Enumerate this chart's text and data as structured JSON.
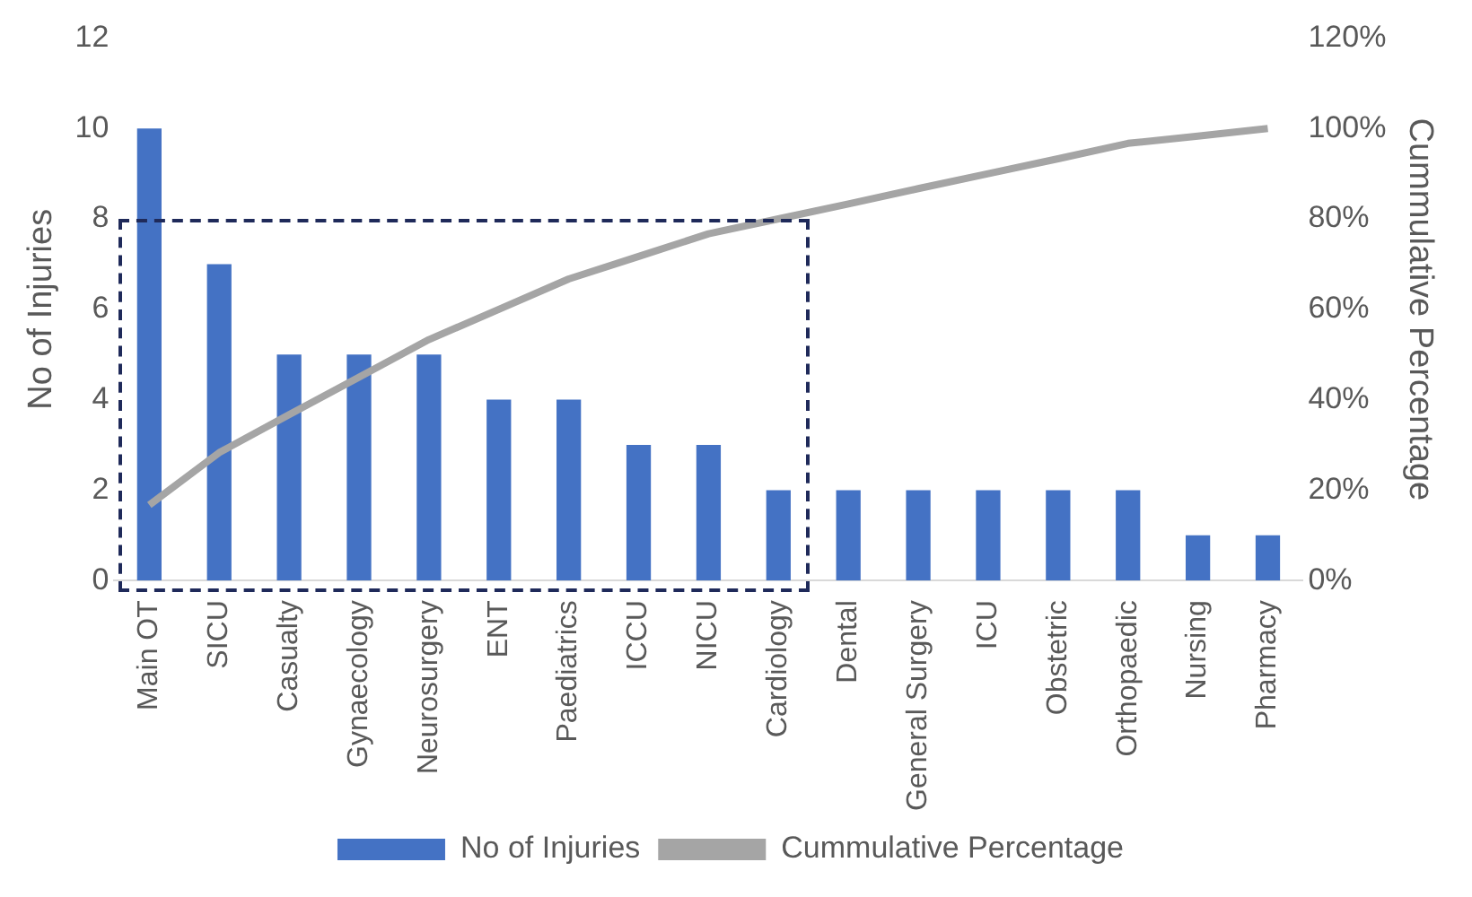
{
  "chart_data": {
    "type": "bar",
    "ylabel": "No of Injuries",
    "y2label": "Cummulative Percentage",
    "categories": [
      "Main OT",
      "SICU",
      "Casualty",
      "Gynaecology",
      "Neurosurgery",
      "ENT",
      "Paediatrics",
      "ICCU",
      "NICU",
      "Cardiology",
      "Dental",
      "General Surgery",
      "ICU",
      "Obstetric",
      "Orthopaedic",
      "Nursing",
      "Pharmacy"
    ],
    "series": [
      {
        "name": "No of Injuries",
        "color": "#4472c4",
        "values": [
          10,
          7,
          5,
          5,
          5,
          4,
          4,
          3,
          3,
          2,
          2,
          2,
          2,
          2,
          2,
          1,
          1
        ]
      },
      {
        "name": "Cummulative Percentage",
        "type": "line",
        "axis": "y2",
        "color": "#a5a5a5",
        "values": [
          16.7,
          28.3,
          36.7,
          45,
          53.3,
          60,
          66.7,
          71.7,
          76.7,
          80,
          83.3,
          86.7,
          90,
          93.3,
          96.7,
          98.3,
          100
        ]
      }
    ],
    "ylim": [
      0,
      12
    ],
    "yticks": [
      0,
      2,
      4,
      6,
      8,
      10,
      12
    ],
    "y2lim": [
      0,
      120
    ],
    "y2ticks": [
      {
        "value": 0,
        "label": "0%"
      },
      {
        "value": 20,
        "label": "20%"
      },
      {
        "value": 40,
        "label": "40%"
      },
      {
        "value": 60,
        "label": "60%"
      },
      {
        "value": 80,
        "label": "80%"
      },
      {
        "value": 100,
        "label": "100%"
      },
      {
        "value": 120,
        "label": "120%"
      }
    ],
    "grid": false,
    "legend": "bottom",
    "marker": "none"
  }
}
